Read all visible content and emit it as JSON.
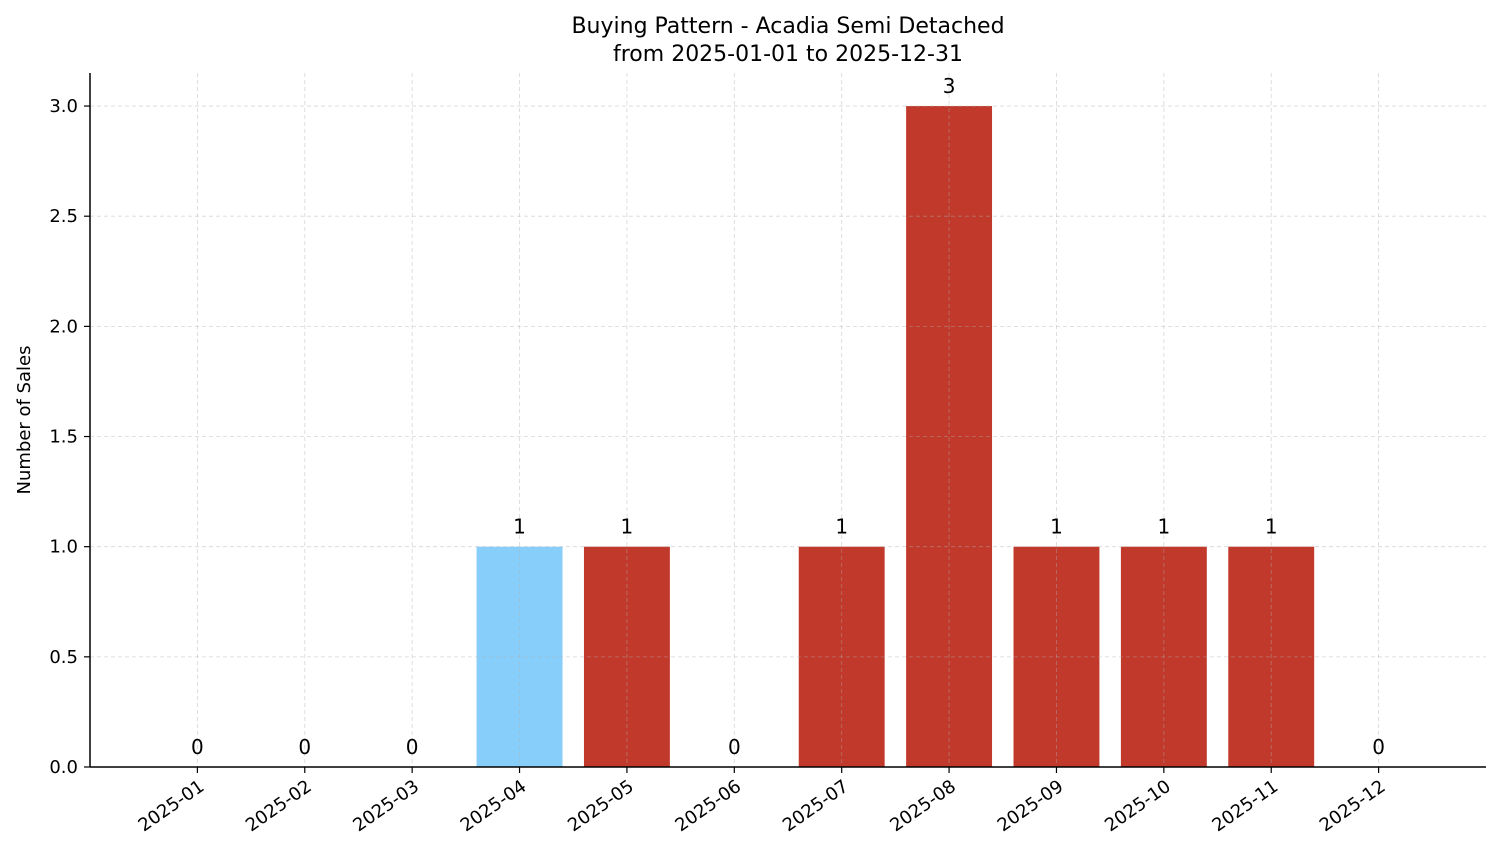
{
  "chart_data": {
    "type": "bar",
    "title": "Buying Pattern - Acadia Semi Detached",
    "subtitle": "from 2025-01-01 to 2025-12-31",
    "xlabel": "",
    "ylabel": "Number of Sales",
    "categories": [
      "2025-01",
      "2025-02",
      "2025-03",
      "2025-04",
      "2025-05",
      "2025-06",
      "2025-07",
      "2025-08",
      "2025-09",
      "2025-10",
      "2025-11",
      "2025-12"
    ],
    "values": [
      0,
      0,
      0,
      1,
      1,
      0,
      1,
      3,
      1,
      1,
      1,
      0
    ],
    "bar_colors": [
      "#c0392b",
      "#c0392b",
      "#c0392b",
      "#87cefa",
      "#c0392b",
      "#c0392b",
      "#c0392b",
      "#c0392b",
      "#c0392b",
      "#c0392b",
      "#c0392b",
      "#c0392b"
    ],
    "highlight_color": "#87cefa",
    "bar_color": "#c0392b",
    "ylim": [
      0,
      3.15
    ],
    "yticks": [
      "0.0",
      "0.5",
      "1.0",
      "1.5",
      "2.0",
      "2.5",
      "3.0"
    ],
    "grid": true,
    "data_labels": true
  }
}
